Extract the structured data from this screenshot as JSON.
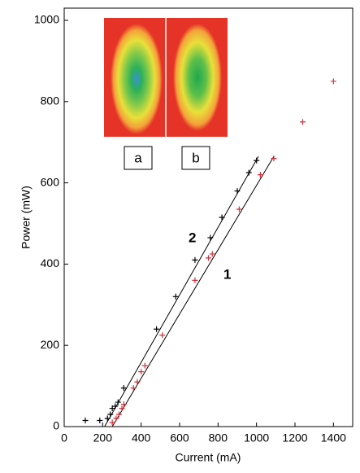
{
  "chart_data": {
    "type": "scatter",
    "x_label": "Current (mA)",
    "y_label": "Power (mW)",
    "xlim": [
      0,
      1500
    ],
    "ylim": [
      0,
      1030
    ],
    "xticks": [
      0,
      200,
      400,
      600,
      800,
      1000,
      1200,
      1400
    ],
    "yticks": [
      0,
      200,
      400,
      600,
      800,
      1000
    ],
    "series": [
      {
        "name": "2",
        "color": "#000000",
        "x": [
          110,
          185,
          225,
          240,
          250,
          265,
          280,
          310,
          480,
          580,
          680,
          760,
          820,
          900,
          960,
          1000
        ],
        "values": [
          15,
          15,
          20,
          30,
          45,
          50,
          60,
          95,
          240,
          320,
          410,
          465,
          515,
          580,
          625,
          655
        ]
      },
      {
        "name": "1",
        "color": "#d0303a",
        "x": [
          250,
          270,
          285,
          300,
          310,
          360,
          380,
          400,
          420,
          510,
          680,
          750,
          770,
          910,
          1020,
          1090,
          1240,
          1400
        ],
        "values": [
          10,
          20,
          30,
          45,
          55,
          95,
          110,
          135,
          150,
          225,
          360,
          415,
          425,
          535,
          620,
          660,
          750,
          850
        ]
      }
    ],
    "fits": [
      {
        "color": "#000000",
        "x": [
          210,
          1010
        ],
        "values": [
          0,
          665
        ]
      },
      {
        "color": "#000000",
        "x": [
          250,
          1090
        ],
        "values": [
          0,
          665
        ]
      }
    ],
    "insets": [
      "a",
      "b"
    ]
  }
}
